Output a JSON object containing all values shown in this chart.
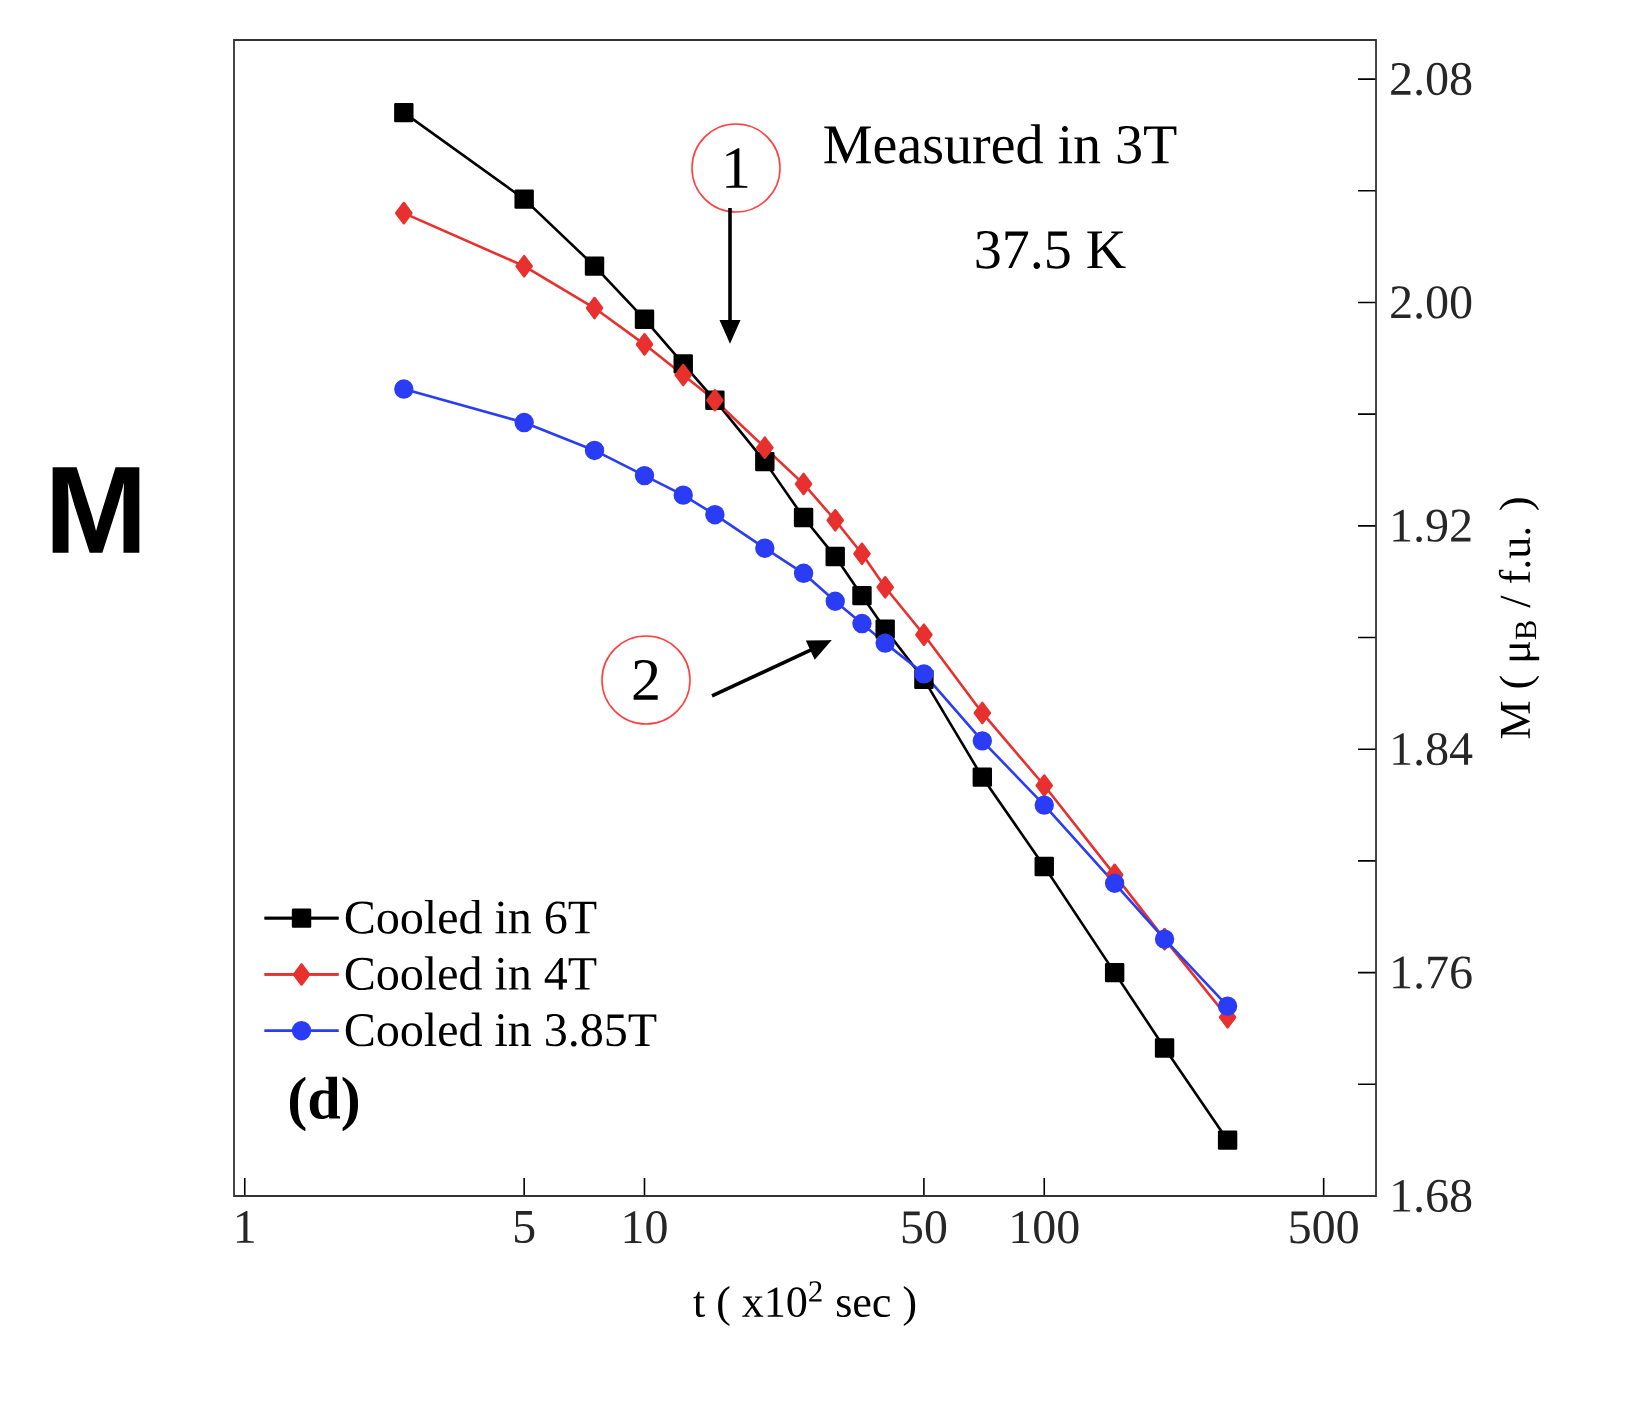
{
  "chart_data": {
    "type": "line",
    "xlabel": "t ( x10$^{2}$ sec )",
    "ylabel": "M ( μ$_{B}$ / f.u. )",
    "x": [
      2.5,
      5,
      7.5,
      10,
      12.5,
      15,
      20,
      25,
      30,
      35,
      40,
      50,
      70,
      100,
      150,
      200,
      287.5
    ],
    "series": [
      {
        "name": "Cooled in 6T",
        "color": "#000000",
        "marker": "square",
        "values": [
          2.068,
          2.037,
          2.013,
          1.994,
          1.978,
          1.965,
          1.943,
          1.923,
          1.909,
          1.895,
          1.883,
          1.865,
          1.83,
          1.798,
          1.76,
          1.733,
          1.7
        ]
      },
      {
        "name": "Cooled in 4T",
        "color": "#e8302e",
        "marker": "diamond",
        "values": [
          2.032,
          2.013,
          1.998,
          1.985,
          1.974,
          1.965,
          1.948,
          1.935,
          1.922,
          1.91,
          1.898,
          1.881,
          1.853,
          1.827,
          1.795,
          1.772,
          1.744
        ]
      },
      {
        "name": "Cooled in 3.85T",
        "color": "#2a3cf5",
        "marker": "circle",
        "values": [
          1.969,
          1.957,
          1.947,
          1.938,
          1.931,
          1.924,
          1.912,
          1.903,
          1.893,
          1.885,
          1.878,
          1.867,
          1.843,
          1.82,
          1.792,
          1.772,
          1.748
        ]
      }
    ],
    "log": "x",
    "xlim": [
      0.94,
      676
    ],
    "xticks": [
      1,
      5,
      10,
      50,
      100,
      500
    ],
    "ylim": [
      1.68,
      2.094
    ],
    "yticks": [
      1.68,
      {
        "value": 1.72,
        "label": null
      },
      1.76,
      {
        "value": 1.8,
        "label": null
      },
      1.84,
      {
        "value": 1.88,
        "label": null
      },
      1.92,
      {
        "value": 1.96,
        "label": null
      },
      "2.00",
      {
        "value": 2.04,
        "label": null
      },
      2.08
    ],
    "legend": "bottom left",
    "grid": false,
    "annotations": [
      "Measured in 3T",
      "37.5 K",
      "(d)",
      "M",
      "1",
      "2"
    ]
  }
}
